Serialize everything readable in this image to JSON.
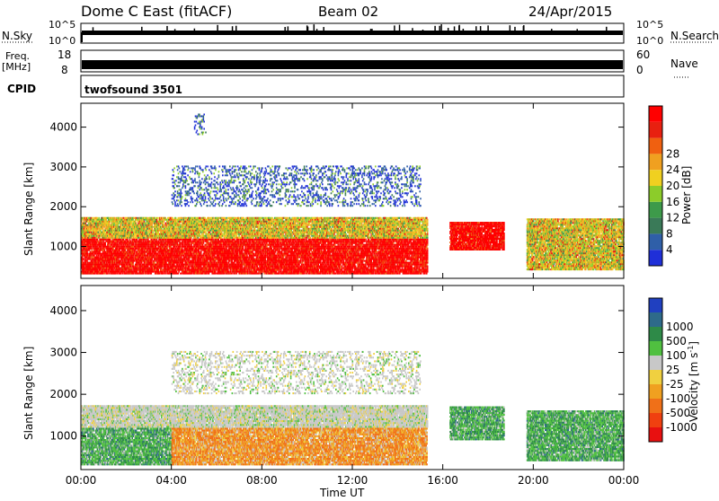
{
  "header": {
    "title": "Dome C East (fitACF)",
    "beam": "Beam 02",
    "date": "24/Apr/2015"
  },
  "noise_panel": {
    "left_label": "N.Sky",
    "right_label": "N.Search",
    "left_ticks": [
      "10^5",
      "10^0"
    ],
    "right_ticks": [
      "10^5",
      "10^0"
    ]
  },
  "freq_panel": {
    "left_label_1": "Freq.",
    "left_label_2": "[MHz]",
    "left_ticks": [
      "18",
      "8"
    ],
    "right_label": "Nave",
    "right_ticks": [
      "60",
      "0"
    ]
  },
  "cpid_panel": {
    "label": "CPID",
    "program": "twofsound 3501"
  },
  "colors": {
    "power_scale": [
      "#1f2fd8",
      "#2f5fa8",
      "#3a7a58",
      "#3d9a4a",
      "#8ccc2a",
      "#f0d020",
      "#f0a020",
      "#f06010",
      "#e82010",
      "#ff0000"
    ],
    "velocity_scale": [
      "#e81010",
      "#f04010",
      "#f07018",
      "#f0a020",
      "#f0d040",
      "#c8c8c8",
      "#50c040",
      "#2e8a48",
      "#2e6a8a",
      "#2040c0"
    ]
  },
  "chart_data": [
    {
      "type": "heatmap",
      "name": "Power panel",
      "xlabel": "",
      "ylabel": "Slant Range [km]",
      "x_ticks": [
        "00:00",
        "04:00",
        "08:00",
        "12:00",
        "16:00",
        "20:00",
        "00:00"
      ],
      "xlim_hours": [
        0,
        24
      ],
      "y_ticks": [
        1000,
        2000,
        3000,
        4000
      ],
      "ylim": [
        200,
        4600
      ],
      "colorbar": {
        "label": "Power [dB]",
        "ticks": [
          4,
          8,
          12,
          16,
          20,
          24,
          28
        ],
        "range": [
          0,
          32
        ]
      },
      "grid": false,
      "scatter_regions": [
        {
          "t_start": 0.0,
          "t_end": 15.3,
          "range_start": 300,
          "range_end": 1200,
          "level": "strong"
        },
        {
          "t_start": 0.0,
          "t_end": 15.3,
          "range_start": 1200,
          "range_end": 1700,
          "level": "moderate"
        },
        {
          "t_start": 16.3,
          "t_end": 18.7,
          "range_start": 900,
          "range_end": 1600,
          "level": "strong"
        },
        {
          "t_start": 19.7,
          "t_end": 24.0,
          "range_start": 400,
          "range_end": 1700,
          "level": "moderate"
        },
        {
          "t_start": 4.0,
          "t_end": 15.0,
          "range_start": 2000,
          "range_end": 3000,
          "level": "weak"
        },
        {
          "t_start": 5.0,
          "t_end": 5.5,
          "range_start": 3800,
          "range_end": 4300,
          "level": "weak"
        }
      ]
    },
    {
      "type": "heatmap",
      "name": "Velocity panel",
      "xlabel": "Time UT",
      "ylabel": "Slant Range [km]",
      "x_ticks": [
        "00:00",
        "04:00",
        "08:00",
        "12:00",
        "16:00",
        "20:00",
        "00:00"
      ],
      "xlim_hours": [
        0,
        24
      ],
      "y_ticks": [
        1000,
        2000,
        3000,
        4000
      ],
      "ylim": [
        200,
        4600
      ],
      "colorbar": {
        "label": "Velocity [m s-1]",
        "ticks": [
          1000,
          500,
          100,
          25,
          -25,
          -100,
          -500,
          -1000
        ]
      },
      "grid": false,
      "scatter_regions": [
        {
          "t_start": 0.0,
          "t_end": 4.0,
          "range_start": 300,
          "range_end": 1200,
          "velocity_class": "positive"
        },
        {
          "t_start": 4.0,
          "t_end": 15.3,
          "range_start": 300,
          "range_end": 1200,
          "velocity_class": "negative"
        },
        {
          "t_start": 0.0,
          "t_end": 15.3,
          "range_start": 1200,
          "range_end": 1700,
          "velocity_class": "near-zero"
        },
        {
          "t_start": 16.3,
          "t_end": 18.7,
          "range_start": 900,
          "range_end": 1700,
          "velocity_class": "positive"
        },
        {
          "t_start": 19.7,
          "t_end": 24.0,
          "range_start": 400,
          "range_end": 1600,
          "velocity_class": "positive"
        },
        {
          "t_start": 4.0,
          "t_end": 15.0,
          "range_start": 2000,
          "range_end": 3000,
          "velocity_class": "near-zero"
        }
      ]
    }
  ]
}
